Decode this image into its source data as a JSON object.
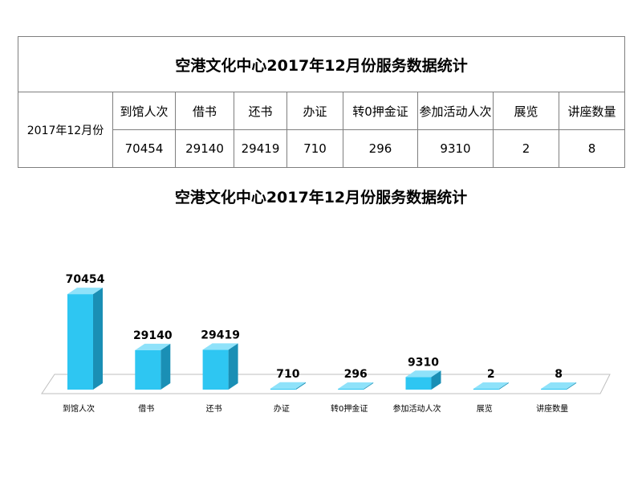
{
  "table": {
    "title": "空港文化中心2017年12月份服务数据统计",
    "period_label": "2017年12月份",
    "headers": [
      "到馆人次",
      "借书",
      "还书",
      "办证",
      "转0押金证",
      "参加活动人次",
      "展览",
      "讲座数量"
    ],
    "values": [
      "70454",
      "29140",
      "29419",
      "710",
      "296",
      "9310",
      "2",
      "8"
    ]
  },
  "chart_data": {
    "type": "bar",
    "title": "空港文化中心2017年12月份服务数据统计",
    "categories": [
      "到馆人次",
      "借书",
      "还书",
      "办证",
      "转0押金证",
      "参加活动人次",
      "展览",
      "讲座数量"
    ],
    "values": [
      70454,
      29140,
      29419,
      710,
      296,
      9310,
      2,
      8
    ],
    "data_labels": [
      "70454",
      "29140",
      "29419",
      "710",
      "296",
      "9310",
      "2",
      "8"
    ],
    "xlabel": "",
    "ylabel": "",
    "ylim": [
      0,
      80000
    ],
    "grid": false,
    "legend": "none",
    "style": "3d",
    "colors": {
      "bar_front": "#2EC6F2",
      "bar_side": "#1A8FB5",
      "bar_top": "#8FE2FA",
      "floor": "#FFFFFF",
      "floor_edge": "#BFBFBF"
    }
  }
}
